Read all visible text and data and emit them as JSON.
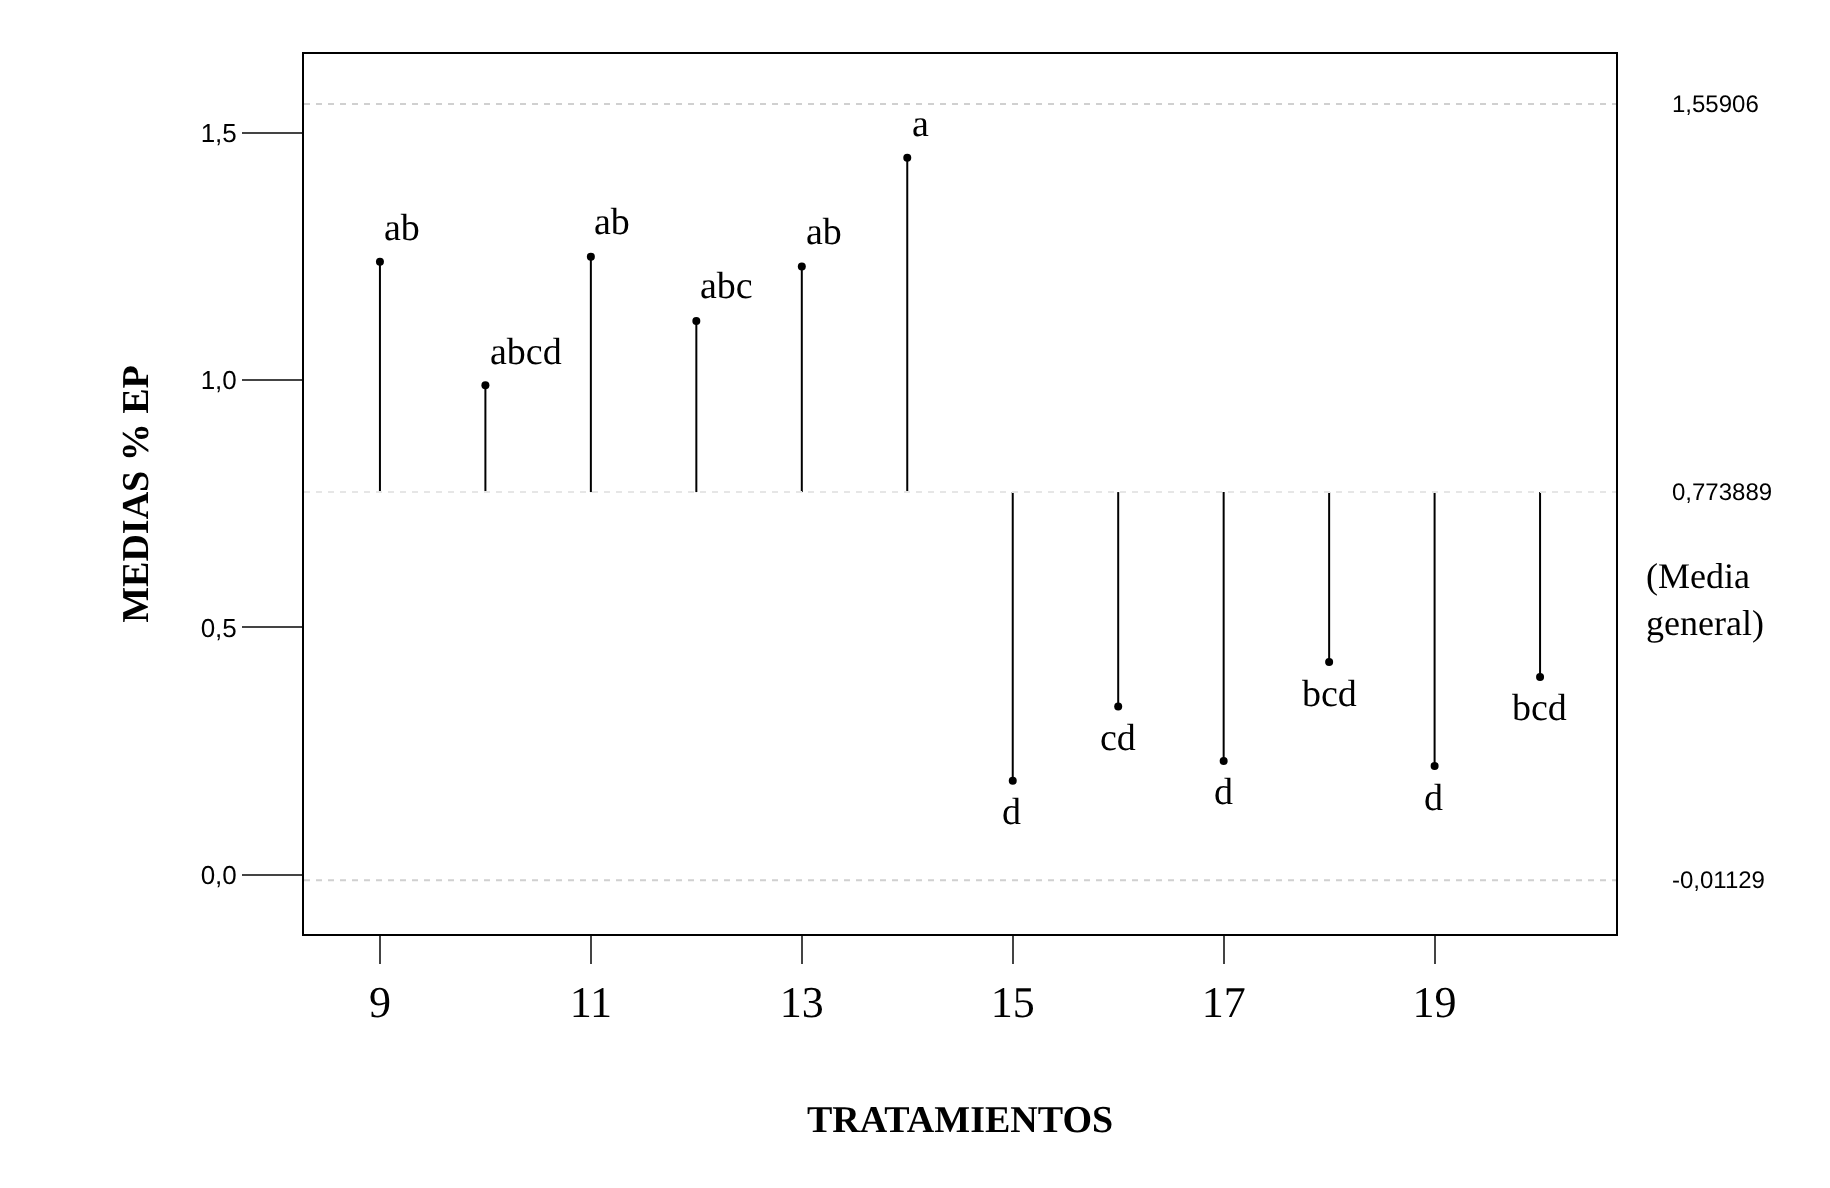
{
  "chart_data": {
    "type": "lollipop",
    "xlabel": "TRATAMIENTOS",
    "ylabel": "MEDIAS % EP",
    "x": [
      9,
      10,
      11,
      12,
      13,
      14,
      15,
      16,
      17,
      18,
      19,
      20
    ],
    "series": [
      {
        "color": "#000000",
        "values": [
          1.24,
          0.99,
          1.25,
          1.12,
          1.23,
          1.45,
          0.19,
          0.34,
          0.23,
          0.43,
          0.22,
          0.4
        ],
        "value_labels": [
          "ab",
          "abcd",
          "ab",
          "abc",
          "ab",
          "a",
          "d",
          "cd",
          "d",
          "bcd",
          "d",
          "bcd"
        ]
      }
    ],
    "xlim": [
      8.28,
      20.72
    ],
    "xticks": [
      9,
      11,
      13,
      15,
      17,
      19
    ],
    "ylim": [
      -0.12,
      1.66
    ],
    "yticks": [
      {
        "value": 0.0,
        "label": "0,0"
      },
      {
        "value": 0.5,
        "label": "0,5"
      },
      {
        "value": 1.0,
        "label": "1,0"
      },
      {
        "value": 1.5,
        "label": "1,5"
      }
    ],
    "ref_lines": [
      {
        "axis": "y",
        "value": 1.55906,
        "label": "1,55906",
        "color": "#d0d0d0",
        "line_style": "dotted"
      },
      {
        "axis": "y",
        "value": 0.773889,
        "label": "0,773889",
        "color": "#e6e6e6",
        "line_style": "dotted"
      },
      {
        "axis": "y",
        "value": -0.01129,
        "label": "-0,01129",
        "color": "#d0d0d0",
        "line_style": "dotted"
      }
    ],
    "annotations": [
      "(Media general)"
    ],
    "marker": "circle"
  }
}
